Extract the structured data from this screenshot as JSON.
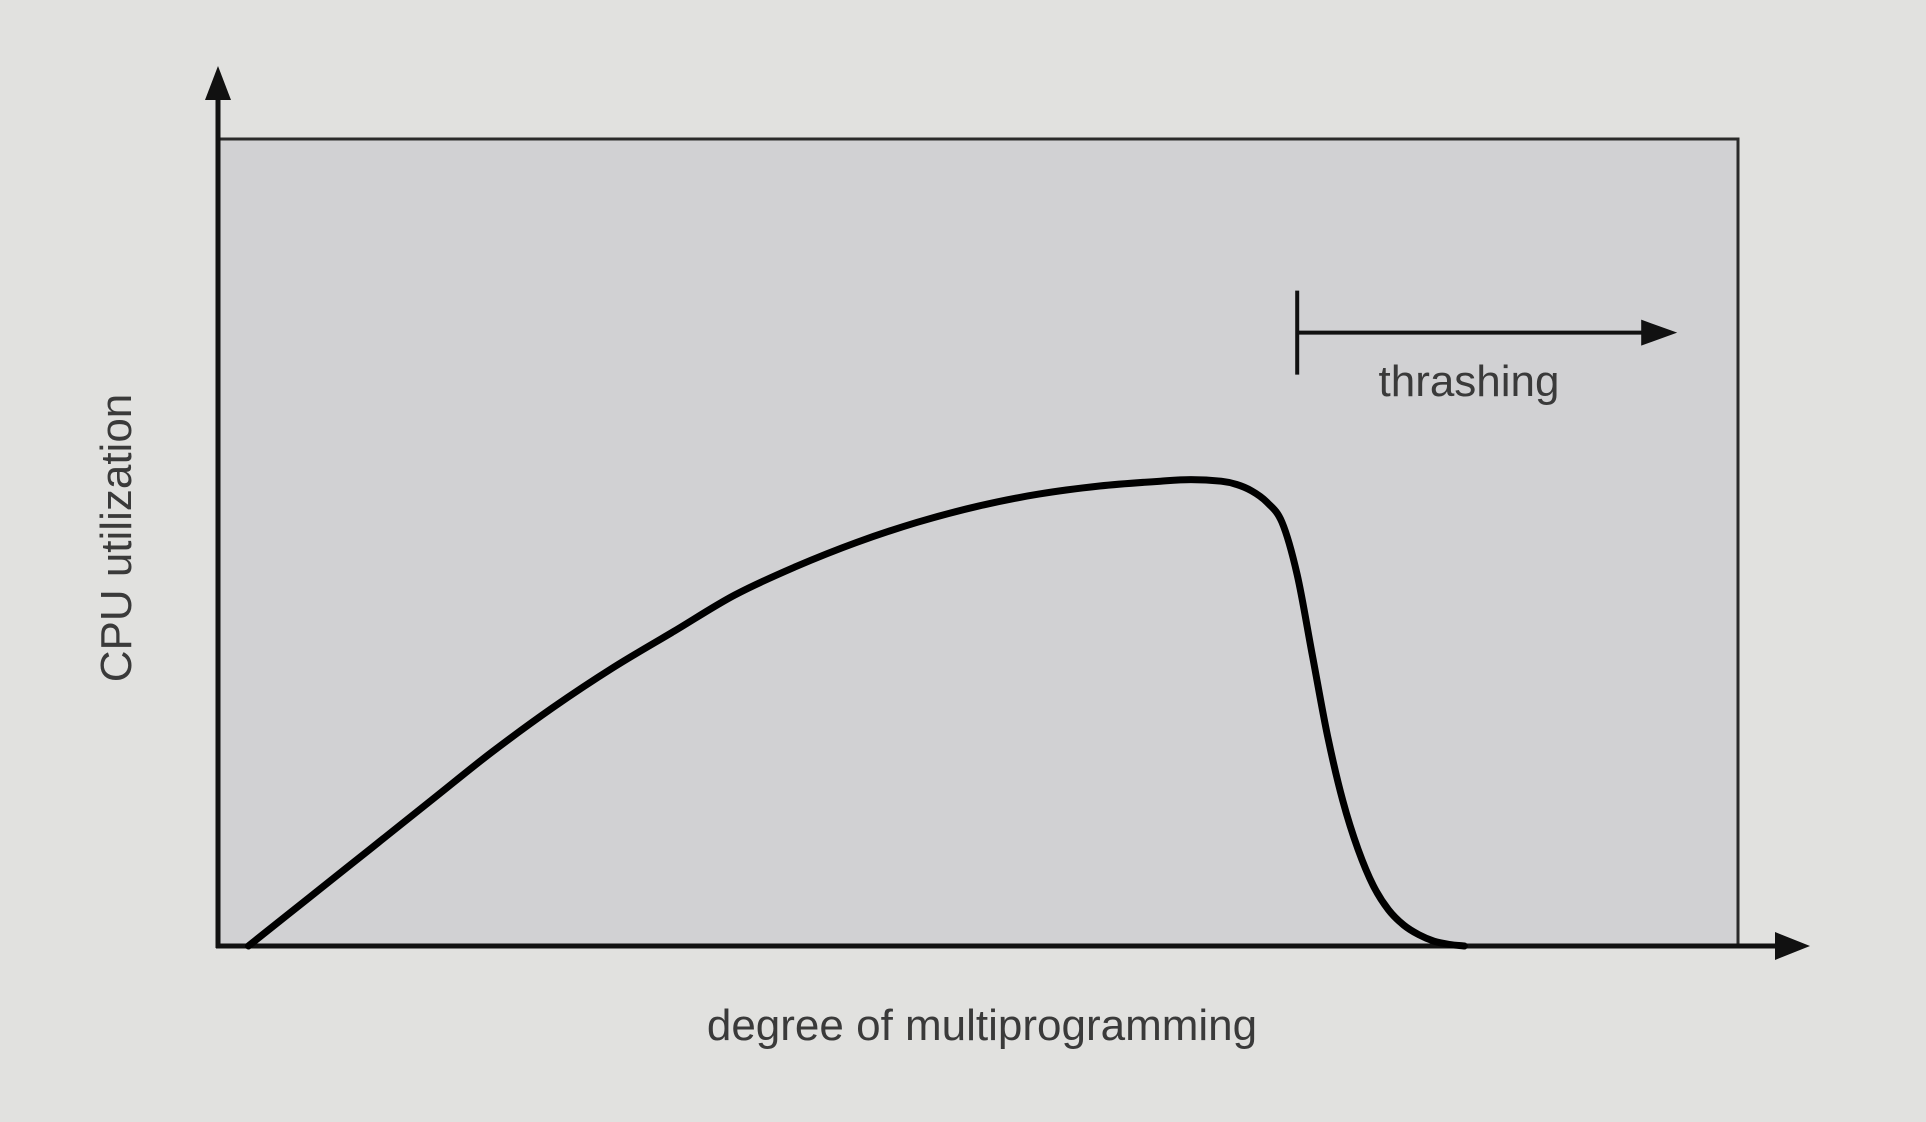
{
  "chart_data": {
    "type": "line",
    "xlabel": "degree of multiprogramming",
    "ylabel": "CPU utilization",
    "xlim": [
      0,
      100
    ],
    "ylim": [
      0,
      100
    ],
    "grid": false,
    "legend": "none",
    "annotation": {
      "text": "thrashing",
      "from_x": 71,
      "to_x": 96,
      "y": 76
    },
    "series": [
      {
        "x": [
          2,
          6,
          10,
          14,
          18,
          22,
          26,
          30,
          34,
          38,
          42,
          46,
          50,
          54,
          58,
          62,
          64,
          66,
          67,
          68,
          69,
          70,
          71,
          72,
          73,
          74,
          75,
          76,
          77,
          78,
          79,
          80,
          81,
          82
        ],
        "values": [
          0,
          6,
          12,
          18,
          24,
          29.5,
          34.5,
          39,
          43.5,
          47,
          50,
          52.5,
          54.5,
          56,
          57,
          57.6,
          57.8,
          57.6,
          57.2,
          56.4,
          55,
          52.5,
          46,
          36,
          26,
          18,
          12,
          7.5,
          4.5,
          2.6,
          1.4,
          0.6,
          0.2,
          0
        ]
      }
    ]
  }
}
